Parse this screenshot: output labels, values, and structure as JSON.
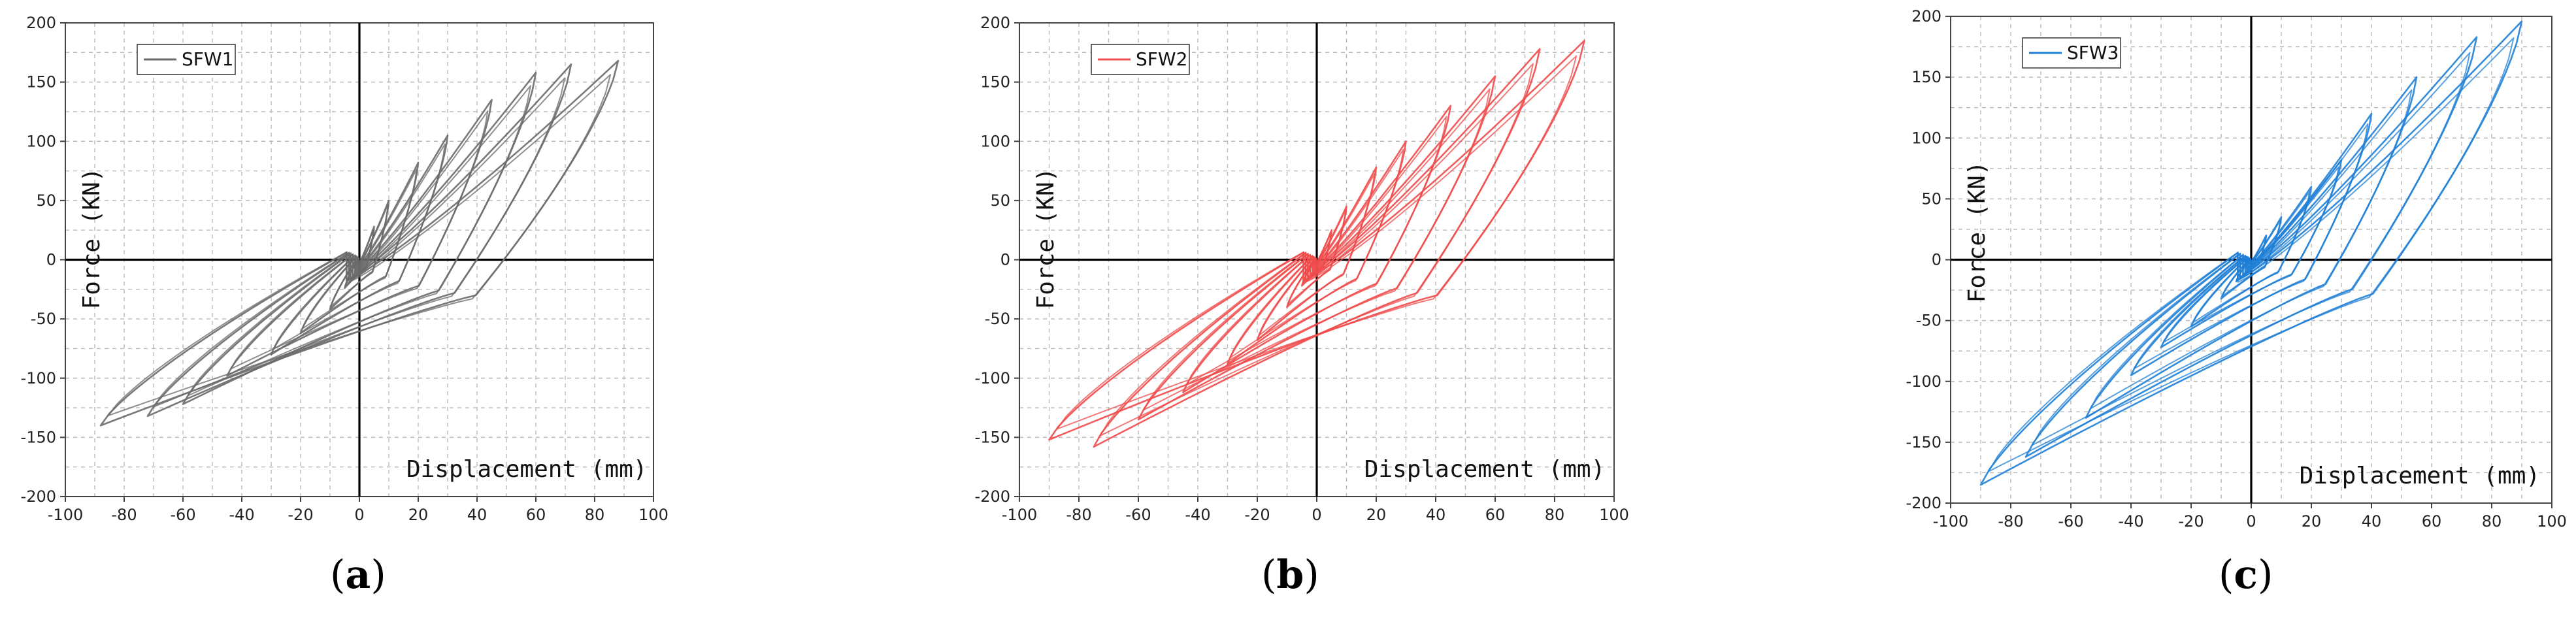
{
  "chart_data": [
    {
      "type": "line",
      "panel_label": "a",
      "xlabel": "Displacement (mm)",
      "ylabel": "Force (KN)",
      "xlim": [
        -100,
        100
      ],
      "ylim": [
        -200,
        200
      ],
      "xticks": [
        -100,
        -80,
        -60,
        -40,
        -20,
        0,
        20,
        40,
        60,
        80,
        100
      ],
      "yticks": [
        -200,
        -150,
        -100,
        -50,
        0,
        50,
        100,
        150,
        200
      ],
      "grid": true,
      "legend_position": "top-left",
      "series": [
        {
          "name": "SFW1",
          "color": "#6a6a6a",
          "loops": [
            {
              "amp": 5,
              "peak_pos": 28,
              "peak_neg": -24,
              "pinch": 6
            },
            {
              "amp": 10,
              "peak_pos": 50,
              "peak_neg": -42,
              "pinch": 10
            },
            {
              "amp": 20,
              "peak_pos": 82,
              "peak_neg": -62,
              "pinch": 14
            },
            {
              "amp": 30,
              "peak_pos": 105,
              "peak_neg": -80,
              "pinch": 18
            },
            {
              "amp": 45,
              "peak_pos": 135,
              "peak_neg": -98,
              "pinch": 22
            },
            {
              "amp": 60,
              "peak_pos": 158,
              "peak_neg": -122,
              "pinch": 26
            },
            {
              "amp": 72,
              "peak_pos": 165,
              "peak_neg": -132,
              "pinch": 28
            },
            {
              "amp": 88,
              "peak_pos": 168,
              "peak_neg": -140,
              "pinch": 30
            }
          ]
        }
      ]
    },
    {
      "type": "line",
      "panel_label": "b",
      "xlabel": "Displacement (mm)",
      "ylabel": "Force (KN)",
      "xlim": [
        -100,
        100
      ],
      "ylim": [
        -200,
        200
      ],
      "xticks": [
        -100,
        -80,
        -60,
        -40,
        -20,
        0,
        20,
        40,
        60,
        80,
        100
      ],
      "yticks": [
        -200,
        -150,
        -100,
        -50,
        0,
        50,
        100,
        150,
        200
      ],
      "grid": true,
      "legend_position": "top-left",
      "series": [
        {
          "name": "SFW2",
          "color": "#ef4b4b",
          "loops": [
            {
              "amp": 5,
              "peak_pos": 25,
              "peak_neg": -22,
              "pinch": 5
            },
            {
              "amp": 10,
              "peak_pos": 45,
              "peak_neg": -40,
              "pinch": 8
            },
            {
              "amp": 20,
              "peak_pos": 78,
              "peak_neg": -68,
              "pinch": 12
            },
            {
              "amp": 30,
              "peak_pos": 100,
              "peak_neg": -88,
              "pinch": 16
            },
            {
              "amp": 45,
              "peak_pos": 130,
              "peak_neg": -112,
              "pinch": 20
            },
            {
              "amp": 60,
              "peak_pos": 155,
              "peak_neg": -135,
              "pinch": 24
            },
            {
              "amp": 75,
              "peak_pos": 178,
              "peak_neg": -158,
              "pinch": 28
            },
            {
              "amp": 90,
              "peak_pos": 185,
              "peak_neg": -152,
              "pinch": 30
            }
          ]
        }
      ]
    },
    {
      "type": "line",
      "panel_label": "c",
      "xlabel": "Displacement (mm)",
      "ylabel": "Force (KN)",
      "xlim": [
        -100,
        100
      ],
      "ylim": [
        -200,
        200
      ],
      "xticks": [
        -100,
        -80,
        -60,
        -40,
        -20,
        0,
        20,
        40,
        60,
        80,
        100
      ],
      "yticks": [
        -200,
        -150,
        -100,
        -50,
        0,
        50,
        100,
        150,
        200
      ],
      "grid": true,
      "legend_position": "top-left",
      "series": [
        {
          "name": "SFW3",
          "color": "#1f7fd6",
          "loops": [
            {
              "amp": 5,
              "peak_pos": 20,
              "peak_neg": -18,
              "pinch": 4
            },
            {
              "amp": 10,
              "peak_pos": 35,
              "peak_neg": -32,
              "pinch": 6
            },
            {
              "amp": 20,
              "peak_pos": 60,
              "peak_neg": -55,
              "pinch": 10
            },
            {
              "amp": 30,
              "peak_pos": 82,
              "peak_neg": -72,
              "pinch": 12
            },
            {
              "amp": 40,
              "peak_pos": 120,
              "peak_neg": -95,
              "pinch": 16
            },
            {
              "amp": 55,
              "peak_pos": 150,
              "peak_neg": -130,
              "pinch": 20
            },
            {
              "amp": 75,
              "peak_pos": 183,
              "peak_neg": -162,
              "pinch": 24
            },
            {
              "amp": 90,
              "peak_pos": 196,
              "peak_neg": -185,
              "pinch": 28
            }
          ]
        }
      ]
    }
  ]
}
